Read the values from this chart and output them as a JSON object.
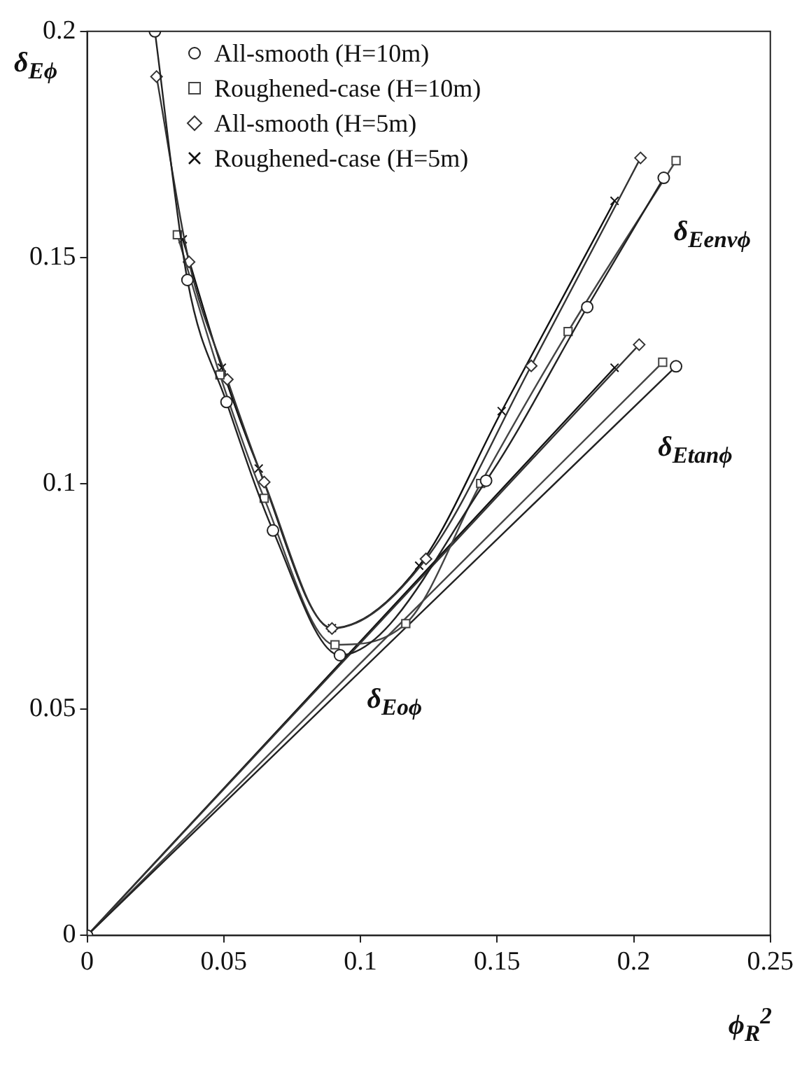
{
  "chart_data": {
    "type": "line",
    "xlabel": "ϕ$_{R}$$^{2}$",
    "ylabel": "δ$_{Eϕ}$",
    "xlim": [
      0,
      0.25
    ],
    "xticks": [
      0,
      0.05,
      0.1,
      0.15,
      0.2,
      0.25
    ],
    "ylim": [
      0,
      0.2
    ],
    "yticks": [
      0,
      0.05,
      0.1,
      0.15,
      0.2
    ],
    "grid": false,
    "legend": "top left",
    "line_style": "solid",
    "series": [
      {
        "name": "All-smooth (H=10m)",
        "color": "#222222",
        "marker": "circle",
        "x": [
          0.0248,
          0.0367,
          0.051,
          0.068,
          0.0925,
          0.146,
          0.183,
          0.211
        ],
        "values": [
          0.2,
          0.145,
          0.118,
          0.0896,
          0.062,
          0.1006,
          0.139,
          0.1676
        ]
      },
      {
        "name": "Roughened-case (H=10m)",
        "color": "#444444",
        "marker": "square",
        "x": [
          0.033,
          0.0486,
          0.0648,
          0.0907,
          0.1166,
          0.144,
          0.176,
          0.2155
        ],
        "values": [
          0.155,
          0.124,
          0.0967,
          0.0643,
          0.069,
          0.1,
          0.1336,
          0.1714
        ]
      },
      {
        "name": "All-smooth (H=5m)",
        "color": "#333333",
        "marker": "diamond",
        "x": [
          0.0254,
          0.0373,
          0.0513,
          0.0648,
          0.0896,
          0.124,
          0.1625,
          0.2025
        ],
        "values": [
          0.19,
          0.149,
          0.123,
          0.1003,
          0.0679,
          0.0833,
          0.126,
          0.172
        ]
      },
      {
        "name": "Roughened-case (H=5m)",
        "color": "#111111",
        "marker": "cross",
        "x": [
          0.035,
          0.0493,
          0.0628,
          0.0896,
          0.1215,
          0.1517,
          0.193
        ],
        "values": [
          0.154,
          0.1256,
          0.1033,
          0.068,
          0.0818,
          0.116,
          0.1625
        ]
      },
      {
        "color": "#222222",
        "marker": "circle",
        "x": [
          0,
          0.2155
        ],
        "values": [
          0,
          0.1259
        ]
      },
      {
        "color": "#444444",
        "marker": "square",
        "x": [
          0,
          0.2106
        ],
        "values": [
          0,
          0.1268
        ]
      },
      {
        "color": "#333333",
        "marker": "diamond",
        "x": [
          0,
          0.202
        ],
        "values": [
          0,
          0.1307
        ]
      },
      {
        "color": "#111111",
        "marker": "cross",
        "x": [
          0,
          0.193
        ],
        "values": [
          0,
          0.1256
        ]
      }
    ],
    "annotations": [
      "δ$_{Eenvϕ}$",
      "δ$_{Etanϕ}$",
      "δ$_{Eoϕ}$"
    ]
  }
}
